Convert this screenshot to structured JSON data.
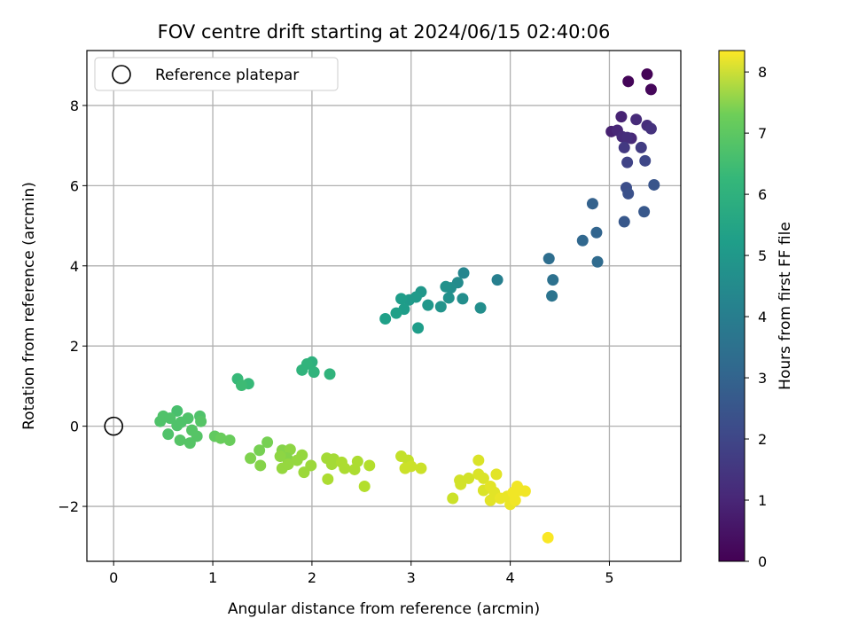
{
  "chart_data": {
    "type": "scatter",
    "title": "FOV centre drift starting at 2024/06/15 02:40:06",
    "xlabel": "Angular distance from reference (arcmin)",
    "ylabel": "Rotation from reference (arcmin)",
    "xlim": [
      -0.27,
      5.72
    ],
    "ylim": [
      -3.37,
      9.37
    ],
    "xticks": [
      0,
      1,
      2,
      3,
      4,
      5
    ],
    "yticks": [
      -2,
      0,
      2,
      4,
      6,
      8
    ],
    "grid": true,
    "legend": {
      "placement": "upper-left",
      "entries": [
        "Reference platepar"
      ]
    },
    "reference_point": {
      "label": "Reference platepar",
      "x": 0,
      "y": 0,
      "marker": "open-circle"
    },
    "colorbar": {
      "label": "Hours from first FF file",
      "colormap": "viridis",
      "range": [
        0,
        8.35
      ],
      "ticks": [
        0,
        1,
        2,
        3,
        4,
        5,
        6,
        7,
        8
      ]
    },
    "series": [
      {
        "color_value_name": "Hours from first FF file",
        "points": [
          {
            "x": 5.38,
            "y": 8.78,
            "c": 0.05
          },
          {
            "x": 5.19,
            "y": 8.6,
            "c": 0.1
          },
          {
            "x": 5.42,
            "y": 8.4,
            "c": 0.15
          },
          {
            "x": 5.12,
            "y": 7.72,
            "c": 0.8
          },
          {
            "x": 5.27,
            "y": 7.65,
            "c": 1.0
          },
          {
            "x": 5.38,
            "y": 7.5,
            "c": 1.1
          },
          {
            "x": 5.42,
            "y": 7.42,
            "c": 1.2
          },
          {
            "x": 5.02,
            "y": 7.35,
            "c": 0.75
          },
          {
            "x": 5.08,
            "y": 7.38,
            "c": 0.9
          },
          {
            "x": 5.13,
            "y": 7.22,
            "c": 1.0
          },
          {
            "x": 5.22,
            "y": 7.18,
            "c": 0.95
          },
          {
            "x": 5.18,
            "y": 7.2,
            "c": 1.1
          },
          {
            "x": 5.15,
            "y": 6.95,
            "c": 1.4
          },
          {
            "x": 5.32,
            "y": 6.95,
            "c": 1.5
          },
          {
            "x": 5.18,
            "y": 6.58,
            "c": 1.7
          },
          {
            "x": 5.36,
            "y": 6.62,
            "c": 1.8
          },
          {
            "x": 5.17,
            "y": 5.95,
            "c": 2.0
          },
          {
            "x": 5.19,
            "y": 5.8,
            "c": 2.1
          },
          {
            "x": 5.45,
            "y": 6.02,
            "c": 2.2
          },
          {
            "x": 5.35,
            "y": 5.35,
            "c": 2.3
          },
          {
            "x": 5.15,
            "y": 5.1,
            "c": 2.3
          },
          {
            "x": 4.83,
            "y": 5.55,
            "c": 2.6
          },
          {
            "x": 4.87,
            "y": 4.83,
            "c": 2.7
          },
          {
            "x": 4.73,
            "y": 4.63,
            "c": 2.8
          },
          {
            "x": 4.88,
            "y": 4.1,
            "c": 2.9
          },
          {
            "x": 4.39,
            "y": 4.18,
            "c": 3.0
          },
          {
            "x": 4.43,
            "y": 3.65,
            "c": 3.1
          },
          {
            "x": 4.42,
            "y": 3.25,
            "c": 3.2
          },
          {
            "x": 3.87,
            "y": 3.65,
            "c": 3.6
          },
          {
            "x": 3.53,
            "y": 3.82,
            "c": 3.8
          },
          {
            "x": 3.47,
            "y": 3.58,
            "c": 4.0
          },
          {
            "x": 3.4,
            "y": 3.45,
            "c": 4.1
          },
          {
            "x": 3.35,
            "y": 3.48,
            "c": 4.2
          },
          {
            "x": 3.52,
            "y": 3.18,
            "c": 4.1
          },
          {
            "x": 3.38,
            "y": 3.2,
            "c": 4.2
          },
          {
            "x": 3.7,
            "y": 2.95,
            "c": 4.1
          },
          {
            "x": 3.3,
            "y": 2.98,
            "c": 4.3
          },
          {
            "x": 3.17,
            "y": 3.02,
            "c": 4.4
          },
          {
            "x": 3.1,
            "y": 3.35,
            "c": 4.4
          },
          {
            "x": 3.05,
            "y": 3.22,
            "c": 4.5
          },
          {
            "x": 2.98,
            "y": 3.15,
            "c": 4.5
          },
          {
            "x": 2.9,
            "y": 3.18,
            "c": 4.6
          },
          {
            "x": 2.93,
            "y": 2.92,
            "c": 4.6
          },
          {
            "x": 2.85,
            "y": 2.82,
            "c": 4.7
          },
          {
            "x": 2.74,
            "y": 2.68,
            "c": 4.7
          },
          {
            "x": 3.07,
            "y": 2.45,
            "c": 4.6
          },
          {
            "x": 2.0,
            "y": 1.6,
            "c": 5.3
          },
          {
            "x": 1.95,
            "y": 1.55,
            "c": 5.4
          },
          {
            "x": 1.9,
            "y": 1.4,
            "c": 5.4
          },
          {
            "x": 2.02,
            "y": 1.35,
            "c": 5.4
          },
          {
            "x": 2.18,
            "y": 1.3,
            "c": 5.4
          },
          {
            "x": 1.25,
            "y": 1.18,
            "c": 5.6
          },
          {
            "x": 1.36,
            "y": 1.06,
            "c": 5.6
          },
          {
            "x": 1.29,
            "y": 1.02,
            "c": 5.7
          },
          {
            "x": 0.64,
            "y": 0.38,
            "c": 5.9
          },
          {
            "x": 0.5,
            "y": 0.25,
            "c": 6.0
          },
          {
            "x": 0.57,
            "y": 0.2,
            "c": 6.0
          },
          {
            "x": 0.87,
            "y": 0.25,
            "c": 6.0
          },
          {
            "x": 0.75,
            "y": 0.2,
            "c": 6.0
          },
          {
            "x": 0.47,
            "y": 0.12,
            "c": 6.0
          },
          {
            "x": 0.68,
            "y": 0.1,
            "c": 6.0
          },
          {
            "x": 0.88,
            "y": 0.12,
            "c": 6.1
          },
          {
            "x": 0.64,
            "y": 0.02,
            "c": 6.0
          },
          {
            "x": 0.79,
            "y": -0.1,
            "c": 6.1
          },
          {
            "x": 0.55,
            "y": -0.2,
            "c": 6.0
          },
          {
            "x": 0.84,
            "y": -0.25,
            "c": 6.1
          },
          {
            "x": 0.67,
            "y": -0.35,
            "c": 6.1
          },
          {
            "x": 0.77,
            "y": -0.42,
            "c": 6.1
          },
          {
            "x": 1.02,
            "y": -0.25,
            "c": 6.3
          },
          {
            "x": 1.08,
            "y": -0.3,
            "c": 6.4
          },
          {
            "x": 1.17,
            "y": -0.35,
            "c": 6.4
          },
          {
            "x": 1.55,
            "y": -0.4,
            "c": 6.6
          },
          {
            "x": 1.47,
            "y": -0.6,
            "c": 6.6
          },
          {
            "x": 1.38,
            "y": -0.8,
            "c": 6.7
          },
          {
            "x": 1.48,
            "y": -0.98,
            "c": 6.8
          },
          {
            "x": 1.7,
            "y": -0.6,
            "c": 6.8
          },
          {
            "x": 1.78,
            "y": -0.58,
            "c": 6.9
          },
          {
            "x": 1.75,
            "y": -0.8,
            "c": 6.8
          },
          {
            "x": 1.68,
            "y": -0.75,
            "c": 6.9
          },
          {
            "x": 1.9,
            "y": -0.72,
            "c": 7.0
          },
          {
            "x": 1.85,
            "y": -0.85,
            "c": 7.0
          },
          {
            "x": 1.7,
            "y": -1.05,
            "c": 7.0
          },
          {
            "x": 1.76,
            "y": -0.95,
            "c": 7.0
          },
          {
            "x": 1.99,
            "y": -0.98,
            "c": 7.1
          },
          {
            "x": 1.92,
            "y": -1.15,
            "c": 7.1
          },
          {
            "x": 2.15,
            "y": -0.8,
            "c": 7.2
          },
          {
            "x": 2.22,
            "y": -0.82,
            "c": 7.2
          },
          {
            "x": 2.2,
            "y": -0.95,
            "c": 7.2
          },
          {
            "x": 2.3,
            "y": -0.9,
            "c": 7.3
          },
          {
            "x": 2.33,
            "y": -1.05,
            "c": 7.3
          },
          {
            "x": 2.43,
            "y": -1.08,
            "c": 7.3
          },
          {
            "x": 2.46,
            "y": -0.88,
            "c": 7.3
          },
          {
            "x": 2.58,
            "y": -0.98,
            "c": 7.4
          },
          {
            "x": 2.53,
            "y": -1.5,
            "c": 7.4
          },
          {
            "x": 2.16,
            "y": -1.32,
            "c": 7.3
          },
          {
            "x": 2.9,
            "y": -0.75,
            "c": 7.6
          },
          {
            "x": 2.97,
            "y": -0.85,
            "c": 7.6
          },
          {
            "x": 2.94,
            "y": -1.05,
            "c": 7.7
          },
          {
            "x": 3.0,
            "y": -1.0,
            "c": 7.7
          },
          {
            "x": 3.1,
            "y": -1.05,
            "c": 7.7
          },
          {
            "x": 3.42,
            "y": -1.8,
            "c": 7.7
          },
          {
            "x": 3.49,
            "y": -1.35,
            "c": 7.8
          },
          {
            "x": 3.5,
            "y": -1.45,
            "c": 7.8
          },
          {
            "x": 3.58,
            "y": -1.3,
            "c": 7.8
          },
          {
            "x": 3.68,
            "y": -0.85,
            "c": 7.9
          },
          {
            "x": 3.68,
            "y": -1.2,
            "c": 7.9
          },
          {
            "x": 3.73,
            "y": -1.3,
            "c": 7.9
          },
          {
            "x": 3.73,
            "y": -1.6,
            "c": 7.9
          },
          {
            "x": 3.8,
            "y": -1.5,
            "c": 8.0
          },
          {
            "x": 3.86,
            "y": -1.2,
            "c": 8.0
          },
          {
            "x": 3.84,
            "y": -1.65,
            "c": 8.0
          },
          {
            "x": 3.8,
            "y": -1.85,
            "c": 8.0
          },
          {
            "x": 3.9,
            "y": -1.8,
            "c": 8.1
          },
          {
            "x": 3.97,
            "y": -1.75,
            "c": 8.1
          },
          {
            "x": 4.0,
            "y": -1.95,
            "c": 8.1
          },
          {
            "x": 4.05,
            "y": -1.85,
            "c": 8.2
          },
          {
            "x": 4.07,
            "y": -1.5,
            "c": 8.2
          },
          {
            "x": 4.03,
            "y": -1.65,
            "c": 8.2
          },
          {
            "x": 4.15,
            "y": -1.62,
            "c": 8.2
          },
          {
            "x": 4.1,
            "y": -1.6,
            "c": 8.2
          },
          {
            "x": 4.38,
            "y": -2.78,
            "c": 8.3
          }
        ]
      }
    ]
  }
}
